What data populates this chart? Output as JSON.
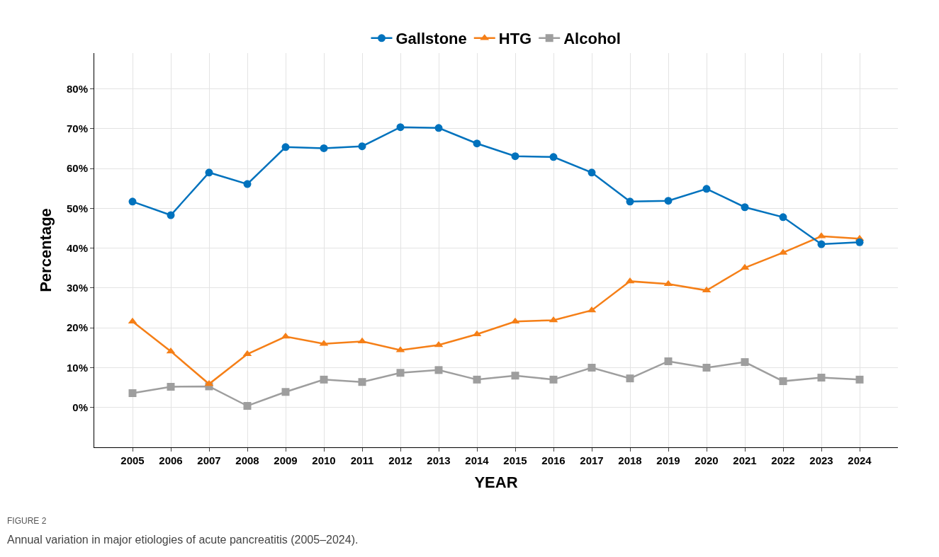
{
  "chart_data": {
    "type": "line",
    "categories": [
      "2005",
      "2006",
      "2007",
      "2008",
      "2009",
      "2010",
      "2011",
      "2012",
      "2013",
      "2014",
      "2015",
      "2016",
      "2017",
      "2018",
      "2019",
      "2020",
      "2021",
      "2022",
      "2023",
      "2024"
    ],
    "series": [
      {
        "name": "Gallstone",
        "color": "#0072bd",
        "marker": "circle",
        "values": [
          51.7,
          48.3,
          59.0,
          56.1,
          65.4,
          65.1,
          65.6,
          70.4,
          70.2,
          66.3,
          63.1,
          62.9,
          59.0,
          51.7,
          51.9,
          54.9,
          50.3,
          47.8,
          41.0,
          41.5
        ]
      },
      {
        "name": "HTG",
        "color": "#f57f17",
        "marker": "triangle",
        "values": [
          21.6,
          14.1,
          5.9,
          13.4,
          17.8,
          16.0,
          16.6,
          14.4,
          15.7,
          18.4,
          21.6,
          21.9,
          24.4,
          31.7,
          31.0,
          29.4,
          35.1,
          38.9,
          43.0,
          42.4
        ]
      },
      {
        "name": "Alcohol",
        "color": "#9e9e9e",
        "marker": "square",
        "values": [
          3.6,
          5.2,
          5.3,
          0.4,
          3.9,
          7.0,
          6.4,
          8.7,
          9.4,
          7.0,
          8.0,
          7.0,
          10.0,
          7.3,
          11.6,
          10.0,
          11.4,
          6.6,
          7.5,
          7.0
        ]
      }
    ],
    "xlabel": "YEAR",
    "ylabel": "Percentage",
    "ylim": [
      -10,
      89
    ],
    "yticks": [
      {
        "value": 0,
        "label": "0%"
      },
      {
        "value": 10,
        "label": "10%"
      },
      {
        "value": 20,
        "label": "20%"
      },
      {
        "value": 30,
        "label": "30%"
      },
      {
        "value": 40,
        "label": "40%"
      },
      {
        "value": 50,
        "label": "50%"
      },
      {
        "value": 60,
        "label": "60%"
      },
      {
        "value": 70,
        "label": "70%"
      },
      {
        "value": 80,
        "label": "80%"
      }
    ],
    "grid": true,
    "legend": "top",
    "line_style": "solid",
    "annotations": [
      "FIGURE 2",
      "Annual variation in major etiologies of acute pancreatitis (2005–2024)."
    ]
  }
}
